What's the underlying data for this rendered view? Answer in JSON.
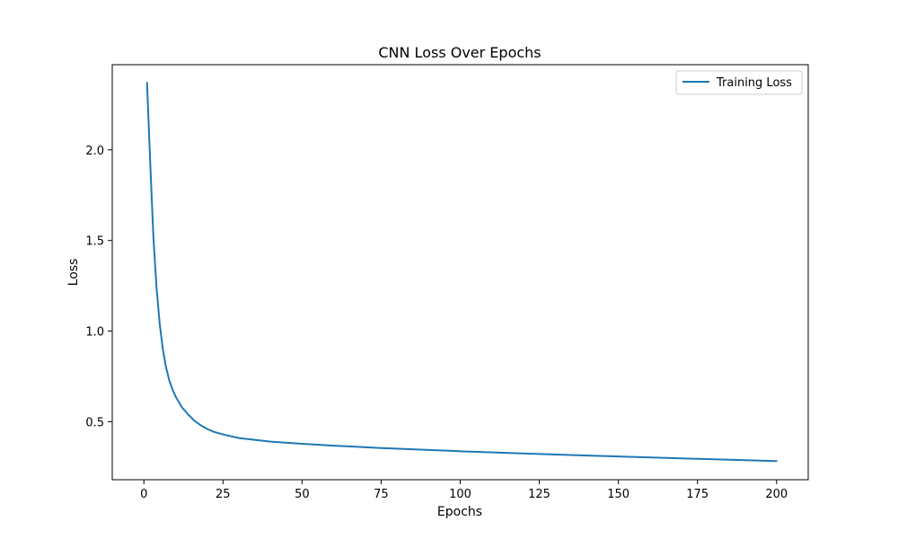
{
  "chart_data": {
    "type": "line",
    "title": "CNN Loss Over Epochs",
    "xlabel": "Epochs",
    "ylabel": "Loss",
    "xlim": [
      -10,
      210
    ],
    "ylim": [
      0.18,
      2.47
    ],
    "xticks": [
      0,
      25,
      50,
      75,
      100,
      125,
      150,
      175,
      200
    ],
    "yticks": [
      0.5,
      1.0,
      1.5,
      2.0
    ],
    "ytick_labels": [
      "0.5",
      "1.0",
      "1.5",
      "2.0"
    ],
    "grid": false,
    "legend_position": "top-right",
    "series": [
      {
        "name": "Training Loss",
        "color": "#1f77b4",
        "x": [
          1,
          2,
          3,
          4,
          5,
          6,
          7,
          8,
          9,
          10,
          12,
          14,
          16,
          18,
          20,
          22,
          25,
          30,
          35,
          40,
          50,
          60,
          75,
          100,
          125,
          150,
          175,
          200
        ],
        "y": [
          2.37,
          1.93,
          1.52,
          1.24,
          1.04,
          0.9,
          0.8,
          0.73,
          0.68,
          0.64,
          0.58,
          0.54,
          0.505,
          0.48,
          0.46,
          0.445,
          0.43,
          0.41,
          0.4,
          0.39,
          0.378,
          0.368,
          0.355,
          0.337,
          0.322,
          0.308,
          0.295,
          0.283
        ]
      }
    ]
  }
}
